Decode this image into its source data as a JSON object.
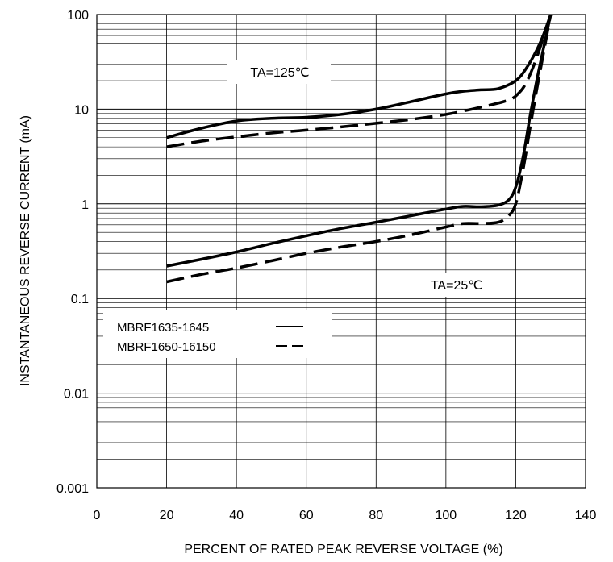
{
  "chart_data": {
    "type": "line",
    "title": "",
    "xlabel": "PERCENT OF RATED PEAK REVERSE VOLTAGE (%)",
    "ylabel": "INSTANTANEOUS REVERSE CURRENT (mA)",
    "x_ticks": [
      "0",
      "20",
      "40",
      "60",
      "80",
      "100",
      "120",
      "140"
    ],
    "y_ticks": [
      "0.001",
      "0.01",
      "0.1",
      "1",
      "10",
      "100"
    ],
    "xlim": [
      0,
      140
    ],
    "ylim": [
      0.001,
      100
    ],
    "y_scale": "log",
    "grid": true,
    "annotations": [
      "TA=125℃",
      "TA=25℃"
    ],
    "legend": {
      "placement": "center-left",
      "entries": [
        {
          "label": "MBRF1635-1645",
          "style": "solid"
        },
        {
          "label": "MBRF1650-16150",
          "style": "dashed"
        }
      ]
    },
    "series": [
      {
        "name": "MBRF1635-1645",
        "condition": "TA=125℃",
        "style": "solid",
        "x": [
          20,
          30,
          40,
          50,
          60,
          70,
          80,
          90,
          100,
          105,
          110,
          115,
          120,
          123,
          126,
          128,
          130
        ],
        "y": [
          5,
          6.3,
          7.5,
          8,
          8.2,
          8.8,
          10,
          12,
          14.5,
          15.5,
          16,
          16.5,
          20,
          27,
          42,
          62,
          100
        ]
      },
      {
        "name": "MBRF1650-16150",
        "condition": "TA=125℃",
        "style": "dashed",
        "x": [
          20,
          30,
          40,
          50,
          60,
          70,
          80,
          90,
          100,
          110,
          118,
          121,
          123,
          125,
          127,
          130
        ],
        "y": [
          4,
          4.6,
          5.1,
          5.6,
          6,
          6.5,
          7.1,
          7.8,
          8.8,
          10.5,
          12.5,
          15,
          19,
          28,
          45,
          100
        ]
      },
      {
        "name": "MBRF1635-1645",
        "condition": "TA=25℃",
        "style": "solid",
        "x": [
          20,
          30,
          40,
          50,
          60,
          70,
          80,
          90,
          100,
          105,
          110,
          115,
          118,
          120,
          122,
          124,
          126,
          128,
          130
        ],
        "y": [
          0.22,
          0.26,
          0.31,
          0.38,
          0.46,
          0.55,
          0.64,
          0.75,
          0.88,
          0.94,
          0.93,
          0.97,
          1.1,
          1.5,
          3,
          8,
          20,
          45,
          100
        ]
      },
      {
        "name": "MBRF1650-16150",
        "condition": "TA=25℃",
        "style": "dashed",
        "x": [
          20,
          30,
          40,
          50,
          60,
          70,
          80,
          90,
          100,
          105,
          110,
          115,
          118,
          120,
          122,
          124,
          126,
          128,
          130
        ],
        "y": [
          0.15,
          0.18,
          0.21,
          0.25,
          0.3,
          0.35,
          0.4,
          0.47,
          0.57,
          0.62,
          0.62,
          0.64,
          0.75,
          1,
          2.2,
          6,
          16,
          40,
          100
        ]
      }
    ]
  }
}
